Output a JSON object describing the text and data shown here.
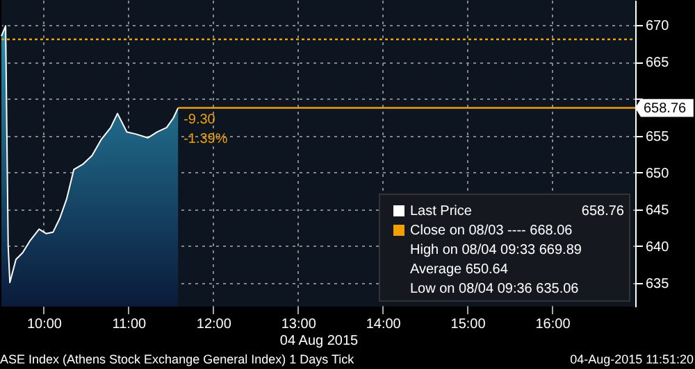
{
  "chart_data": {
    "type": "area",
    "xlabel": "04 Aug 2015",
    "series": [
      {
        "name": "Last Price",
        "color": "#ffffff",
        "x": [
          9.5,
          9.55,
          9.58,
          9.6,
          9.672,
          9.75,
          9.836,
          9.945,
          10.03,
          10.11,
          10.19,
          10.27,
          10.355,
          10.46,
          10.57,
          10.68,
          10.79,
          10.87,
          10.98,
          11.09,
          11.23,
          11.34,
          11.45,
          11.53,
          11.585
        ],
        "values": [
          668.5,
          669.89,
          640,
          635.06,
          638.2,
          639.1,
          640.7,
          642.3,
          641.7,
          641.9,
          643.8,
          646.4,
          650.4,
          651.1,
          652.3,
          654.5,
          656.1,
          658.0,
          655.5,
          655.2,
          654.7,
          655.5,
          656.1,
          657.4,
          658.76
        ]
      }
    ],
    "xlim": [
      9.5,
      16.98
    ],
    "ylim": [
      631.8,
      673.4
    ],
    "xticks": [
      {
        "value": 10,
        "label": "10:00"
      },
      {
        "value": 11,
        "label": "11:00"
      },
      {
        "value": 12,
        "label": "12:00"
      },
      {
        "value": 13,
        "label": "13:00"
      },
      {
        "value": 14,
        "label": "14:00"
      },
      {
        "value": 15,
        "label": "15:00"
      },
      {
        "value": 16,
        "label": "16:00"
      }
    ],
    "yticks": [
      635,
      640,
      645,
      650,
      655,
      {
        "value": 660,
        "label": null
      },
      665,
      670
    ],
    "grid": true,
    "legend": "bottom right",
    "ref_lines": [
      {
        "axis": "y",
        "value": 668.06,
        "label": "Close on 08/03 ---- 668.06",
        "color": "#f0a000",
        "line_style": "dotted"
      },
      {
        "axis": "y",
        "value": 658.76,
        "label": "658.76",
        "color": "#f0a000",
        "line_style": "solid"
      }
    ],
    "annotations": [
      {
        "text": "-9.30",
        "x": 11.65,
        "y": 657.2
      },
      {
        "text": "-1.39%",
        "x": 11.65,
        "y": 654.6
      },
      "658.76",
      "High on 08/04 09:33 669.89",
      "Average 650.64",
      "Low on 08/04 09:36 635.06",
      "ASE Index (Athens Stock Exchange General Index) 1 Days  Tick",
      "04-Aug-2015 11:51:20"
    ]
  }
}
